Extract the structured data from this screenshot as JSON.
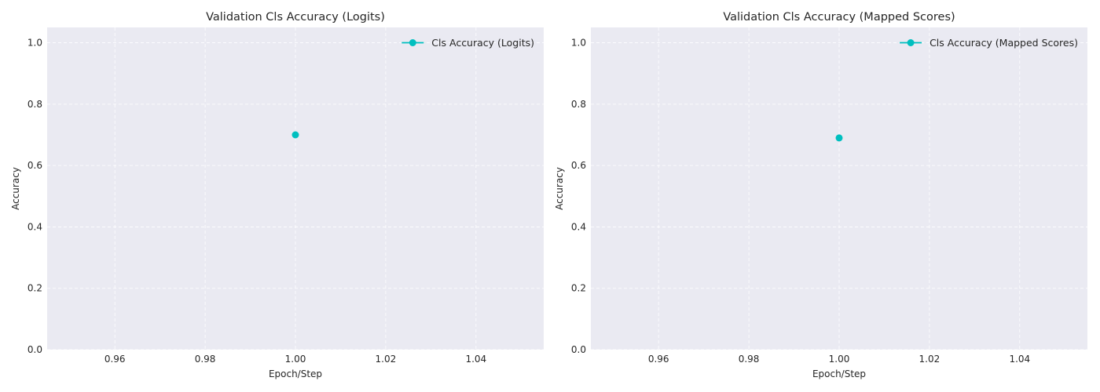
{
  "figure": {
    "background": "#ffffff",
    "plot_background": "#eaeaf2",
    "grid_color": "#ffffff",
    "series_color": "#00bfbf"
  },
  "chart_data": [
    {
      "type": "line",
      "title": "Validation Cls Accuracy (Logits)",
      "xlabel": "Epoch/Step",
      "ylabel": "Accuracy",
      "xlim": [
        0.945,
        1.055
      ],
      "ylim": [
        0.0,
        1.05
      ],
      "x_ticks": [
        0.96,
        0.98,
        1.0,
        1.02,
        1.04
      ],
      "x_tick_labels": [
        "0.96",
        "0.98",
        "1.00",
        "1.02",
        "1.04"
      ],
      "y_ticks": [
        0.0,
        0.2,
        0.4,
        0.6,
        0.8,
        1.0
      ],
      "y_tick_labels": [
        "0.0",
        "0.2",
        "0.4",
        "0.6",
        "0.8",
        "1.0"
      ],
      "grid": true,
      "legend": "upper-right",
      "series": [
        {
          "name": "Cls Accuracy (Logits)",
          "color": "#00bfbf",
          "marker": "circle",
          "x": [
            1.0
          ],
          "y": [
            0.7
          ]
        }
      ]
    },
    {
      "type": "line",
      "title": "Validation Cls Accuracy (Mapped Scores)",
      "xlabel": "Epoch/Step",
      "ylabel": "Accuracy",
      "xlim": [
        0.945,
        1.055
      ],
      "ylim": [
        0.0,
        1.05
      ],
      "x_ticks": [
        0.96,
        0.98,
        1.0,
        1.02,
        1.04
      ],
      "x_tick_labels": [
        "0.96",
        "0.98",
        "1.00",
        "1.02",
        "1.04"
      ],
      "y_ticks": [
        0.0,
        0.2,
        0.4,
        0.6,
        0.8,
        1.0
      ],
      "y_tick_labels": [
        "0.0",
        "0.2",
        "0.4",
        "0.6",
        "0.8",
        "1.0"
      ],
      "grid": true,
      "legend": "upper-right",
      "series": [
        {
          "name": "Cls Accuracy (Mapped Scores)",
          "color": "#00bfbf",
          "marker": "circle",
          "x": [
            1.0
          ],
          "y": [
            0.69
          ]
        }
      ]
    }
  ]
}
